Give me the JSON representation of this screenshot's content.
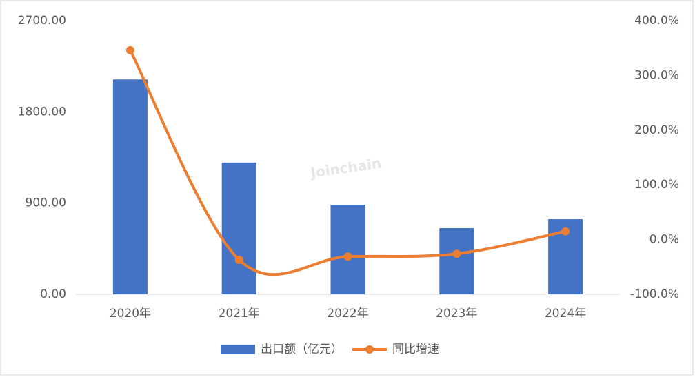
{
  "chart_data": {
    "type": "bar-line",
    "watermark": "Joinchain",
    "categories": [
      "2020年",
      "2021年",
      "2022年",
      "2023年",
      "2024年"
    ],
    "series": [
      {
        "name": "出口额（亿元）",
        "type": "bar",
        "color": "#4472c4",
        "values": [
          2120,
          1300,
          884,
          653,
          741
        ]
      },
      {
        "name": "同比增速",
        "type": "line",
        "axis": "y2",
        "color": "#ed7d31",
        "values": [
          346,
          -37,
          -31,
          -26,
          15
        ]
      }
    ],
    "ylim": [
      0,
      2700
    ],
    "yticks": [
      {
        "value": 0,
        "label": "0.00"
      },
      {
        "value": 900,
        "label": "900.00"
      },
      {
        "value": 1800,
        "label": "1800.00"
      },
      {
        "value": 2700,
        "label": "2700.00"
      }
    ],
    "y2lim": [
      -100,
      400
    ],
    "y2ticks": [
      {
        "value": -100,
        "label": "-100.0%"
      },
      {
        "value": 0,
        "label": "0.0%"
      },
      {
        "value": 100,
        "label": "100.0%"
      },
      {
        "value": 200,
        "label": "200.0%"
      },
      {
        "value": 300,
        "label": "300.0%"
      },
      {
        "value": 400,
        "label": "400.0%"
      }
    ],
    "grid": false,
    "legend": "bottom"
  }
}
